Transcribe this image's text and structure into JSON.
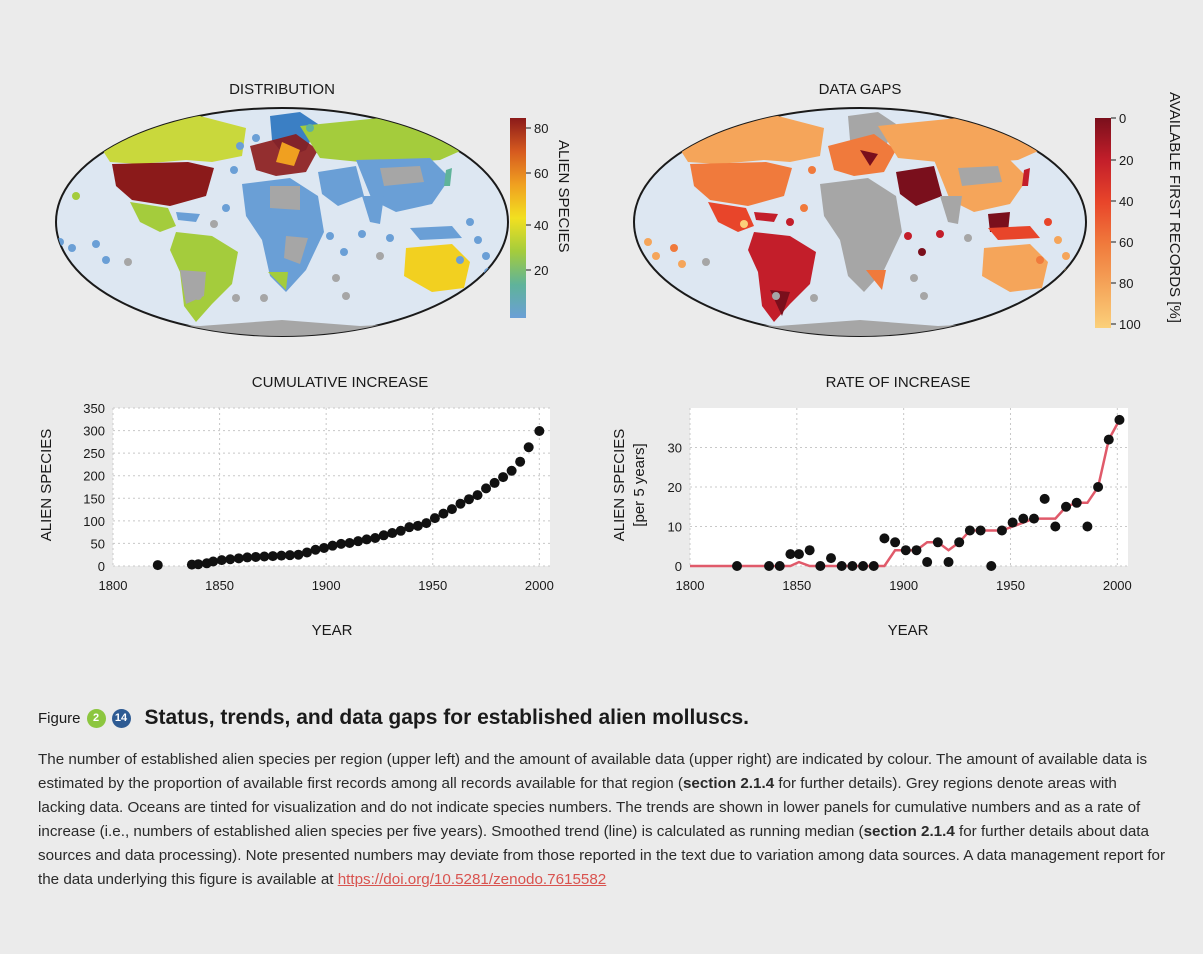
{
  "colors": {
    "background": "#ebebeb",
    "badge_chapter": "#8cc63f",
    "badge_number": "#2e5b93",
    "ocean": "#dde7f2",
    "grey_region": "#a6a6a6",
    "trend_line": "#e05a6a",
    "link": "#d9534f"
  },
  "maps": [
    {
      "title": "DISTRIBUTION",
      "colorbar_label": "ALIEN SPECIES",
      "colorbar_ticks": [
        "80",
        "60",
        "40",
        "20"
      ],
      "colorbar_colors": [
        "#8b1a1a",
        "#d65a1f",
        "#f0a020",
        "#f2e020",
        "#a4cc3c",
        "#5fb39a",
        "#6a9fd6"
      ]
    },
    {
      "title": "DATA GAPS",
      "colorbar_label": "AVAILABLE FIRST RECORDS [%]",
      "colorbar_ticks": [
        "0",
        "20",
        "40",
        "60",
        "80",
        "100"
      ],
      "colorbar_colors": [
        "#7a0f1c",
        "#c31e2a",
        "#e8452a",
        "#f07a3c",
        "#f5a55a",
        "#fbd07a"
      ]
    }
  ],
  "chart_data": [
    {
      "type": "scatter",
      "title": "CUMULATIVE INCREASE",
      "xlabel": "YEAR",
      "ylabel": "ALIEN SPECIES",
      "xlim": [
        1800,
        2005
      ],
      "ylim": [
        0,
        350
      ],
      "xticks": [
        1800,
        1850,
        1900,
        1950,
        2000
      ],
      "yticks": [
        0,
        50,
        100,
        150,
        200,
        250,
        300,
        350
      ],
      "grid": true,
      "x": [
        1821,
        1837,
        1840,
        1844,
        1847,
        1851,
        1855,
        1859,
        1863,
        1867,
        1871,
        1875,
        1879,
        1883,
        1887,
        1891,
        1895,
        1899,
        1903,
        1907,
        1911,
        1915,
        1919,
        1923,
        1927,
        1931,
        1935,
        1939,
        1943,
        1947,
        1951,
        1955,
        1959,
        1963,
        1967,
        1971,
        1975,
        1979,
        1983,
        1987,
        1991,
        1995,
        2000
      ],
      "y": [
        2,
        3,
        4,
        6,
        10,
        13,
        15,
        17,
        19,
        20,
        21,
        22,
        23,
        24,
        25,
        30,
        36,
        40,
        45,
        49,
        51,
        55,
        59,
        62,
        68,
        73,
        78,
        86,
        89,
        95,
        106,
        116,
        126,
        138,
        148,
        157,
        172,
        184,
        197,
        211,
        231,
        263,
        299
      ]
    },
    {
      "type": "scatter",
      "title": "RATE OF INCREASE",
      "xlabel": "YEAR",
      "ylabel": "ALIEN SPECIES",
      "ylabel2": "[per 5 years]",
      "xlim": [
        1800,
        2005
      ],
      "ylim": [
        0,
        40
      ],
      "xticks": [
        1800,
        1850,
        1900,
        1950,
        2000
      ],
      "yticks": [
        0,
        10,
        20,
        30
      ],
      "grid": true,
      "points": {
        "x": [
          1822,
          1837,
          1842,
          1847,
          1851,
          1856,
          1861,
          1866,
          1871,
          1876,
          1881,
          1886,
          1891,
          1896,
          1901,
          1906,
          1911,
          1916,
          1921,
          1926,
          1931,
          1936,
          1941,
          1946,
          1951,
          1956,
          1961,
          1966,
          1971,
          1976,
          1981,
          1986,
          1991,
          1996,
          2001
        ],
        "y": [
          0,
          0,
          0,
          3,
          3,
          4,
          0,
          2,
          0,
          0,
          0,
          0,
          7,
          6,
          4,
          4,
          1,
          6,
          1,
          6,
          9,
          9,
          0,
          9,
          11,
          12,
          12,
          17,
          10,
          15,
          16,
          10,
          20,
          32,
          37
        ]
      },
      "trend": {
        "x": [
          1800,
          1822,
          1837,
          1842,
          1847,
          1851,
          1856,
          1861,
          1866,
          1871,
          1876,
          1881,
          1886,
          1891,
          1896,
          1901,
          1906,
          1911,
          1916,
          1921,
          1926,
          1931,
          1936,
          1941,
          1946,
          1951,
          1956,
          1961,
          1966,
          1971,
          1976,
          1981,
          1986,
          1991,
          1996,
          2001
        ],
        "y": [
          0,
          0,
          0,
          0,
          0,
          1,
          0,
          0,
          0,
          0,
          0,
          0,
          0,
          0,
          4,
          4,
          4,
          6,
          6,
          4,
          6,
          9,
          9,
          9,
          9,
          10,
          11,
          12,
          12,
          12,
          15,
          16,
          16,
          20,
          32,
          37
        ]
      }
    }
  ],
  "caption": {
    "figure_word": "Figure",
    "badge_chapter": "2",
    "badge_number": "14",
    "title": "Status, trends, and data gaps for established alien molluscs.",
    "body_1": "The number of established alien species per region (upper left) and the amount of available data (upper right) are indicated by colour. The amount of available data is estimated by the proportion of available first records among all records available for that region (",
    "section_ref_1": "section 2.1.4",
    "body_2": " for further details). Grey regions denote areas with lacking data. Oceans are tinted for visualization and do not indicate species numbers. The trends are shown in lower panels for cumulative numbers and as a rate of increase (i.e., numbers of established alien species per five years). Smoothed trend (line) is calculated as running median (",
    "section_ref_2": "section 2.1.4",
    "body_3": " for further details about data sources and data processing). Note presented numbers may deviate from those reported in the text due to variation among data sources. A data management report for the data underlying this figure is available at ",
    "link": "https://doi.org/10.5281/zenodo.7615582"
  }
}
